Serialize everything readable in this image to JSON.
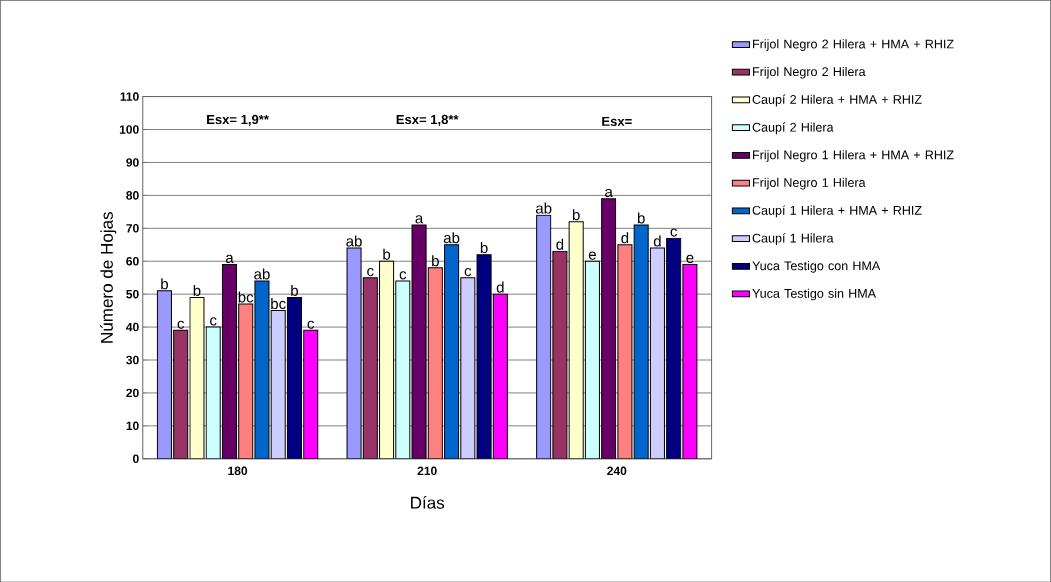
{
  "chart_data": {
    "type": "bar",
    "xlabel": "Días",
    "ylabel": "Número de Hojas",
    "categories": [
      "180",
      "210",
      "240"
    ],
    "series": [
      {
        "name": "Frijol Negro 2 Hilera + HMA + RHIZ",
        "color": "#9999ff",
        "values": [
          51,
          64,
          74
        ],
        "value_labels": [
          "b",
          "ab",
          "ab"
        ]
      },
      {
        "name": "Frijol Negro 2 Hilera",
        "color": "#993366",
        "values": [
          39,
          55,
          63
        ],
        "value_labels": [
          "c",
          "c",
          "d"
        ]
      },
      {
        "name": "Caupí 2 Hilera + HMA + RHIZ",
        "color": "#ffffcc",
        "values": [
          49,
          60,
          72
        ],
        "value_labels": [
          "b",
          "b",
          "b"
        ]
      },
      {
        "name": "Caupí 2 Hilera",
        "color": "#ccffff",
        "values": [
          40,
          54,
          60
        ],
        "value_labels": [
          "c",
          "c",
          "e"
        ]
      },
      {
        "name": "Frijol Negro 1 Hilera + HMA + RHIZ",
        "color": "#660066",
        "values": [
          59,
          71,
          79
        ],
        "value_labels": [
          "a",
          "a",
          "a"
        ]
      },
      {
        "name": "Frijol Negro 1 Hilera",
        "color": "#ff8080",
        "values": [
          47,
          58,
          65
        ],
        "value_labels": [
          "bc",
          "b",
          "d"
        ]
      },
      {
        "name": "Caupí 1 Hilera + HMA + RHIZ",
        "color": "#0066cc",
        "values": [
          54,
          65,
          71
        ],
        "value_labels": [
          "ab",
          "ab",
          "b"
        ]
      },
      {
        "name": "Caupí 1 Hilera",
        "color": "#ccccff",
        "values": [
          45,
          55,
          64
        ],
        "value_labels": [
          "bc",
          "c",
          "d"
        ]
      },
      {
        "name": "Yuca  Testigo con HMA",
        "color": "#000080",
        "values": [
          49,
          62,
          67
        ],
        "value_labels": [
          "b",
          "b",
          "c"
        ]
      },
      {
        "name": "Yuca  Testigo sin HMA",
        "color": "#ff00ff",
        "values": [
          39,
          50,
          59
        ],
        "value_labels": [
          "c",
          "d",
          "e"
        ]
      }
    ],
    "annotations": [
      "Esx= 1,9**",
      "Esx= 1,8**",
      "Esx="
    ],
    "ylim": [
      0,
      110
    ],
    "yticks": [
      0,
      10,
      20,
      30,
      40,
      50,
      60,
      70,
      80,
      90,
      100,
      110
    ],
    "grid": "y",
    "legend": "right"
  }
}
